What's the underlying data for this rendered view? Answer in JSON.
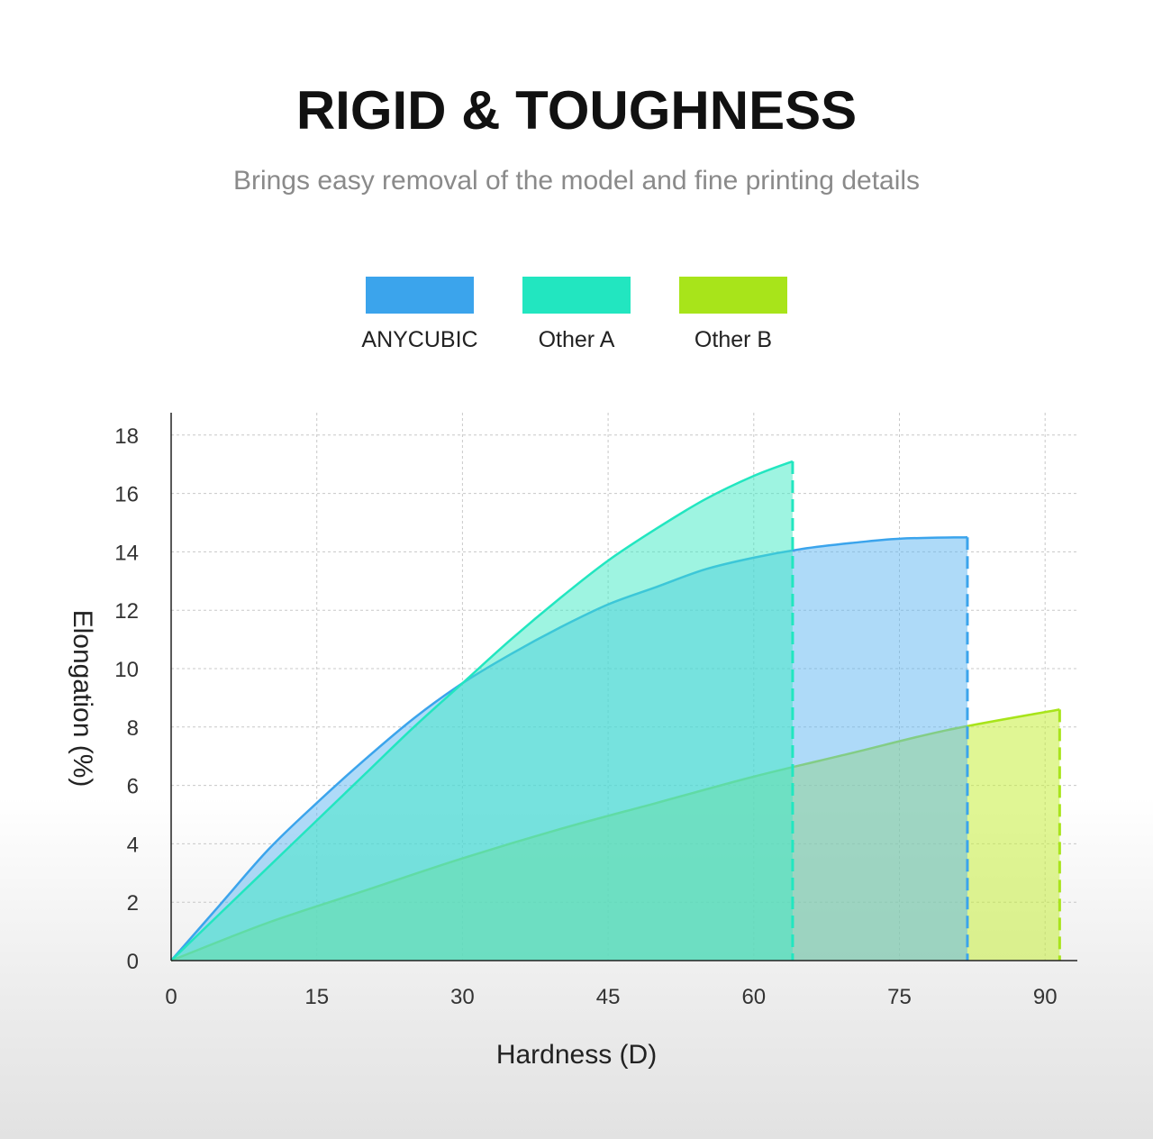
{
  "header": {
    "title": "RIGID & TOUGHNESS",
    "subtitle": "Brings easy removal of the model and fine printing details"
  },
  "chart_data": {
    "type": "area",
    "xlabel": "Hardness (D)",
    "ylabel": "Elongation (%)",
    "xlim": [
      0,
      93
    ],
    "ylim": [
      0,
      18
    ],
    "x_ticks": [
      0,
      15,
      30,
      45,
      60,
      75,
      90
    ],
    "y_ticks": [
      0,
      2,
      4,
      6,
      8,
      10,
      12,
      14,
      16,
      18
    ],
    "grid": true,
    "legend_position": "top-center",
    "series": [
      {
        "name": "ANYCUBIC",
        "color": "#3ba4ec",
        "fill": "#5db5f2",
        "x": [
          0,
          5,
          10,
          15,
          20,
          25,
          30,
          35,
          40,
          45,
          50,
          55,
          60,
          65,
          70,
          75,
          82
        ],
        "y": [
          0,
          1.9,
          3.8,
          5.4,
          6.9,
          8.3,
          9.5,
          10.5,
          11.4,
          12.2,
          12.8,
          13.4,
          13.8,
          14.1,
          14.3,
          14.45,
          14.5
        ]
      },
      {
        "name": "Other A",
        "color": "#22e6c0",
        "fill": "#3eeac4",
        "x": [
          0,
          5,
          10,
          15,
          20,
          25,
          30,
          35,
          40,
          45,
          50,
          55,
          60,
          64
        ],
        "y": [
          0,
          1.6,
          3.2,
          4.8,
          6.4,
          8.0,
          9.5,
          11.0,
          12.4,
          13.7,
          14.8,
          15.8,
          16.6,
          17.1
        ]
      },
      {
        "name": "Other B",
        "color": "#a8e41a",
        "fill": "#c6ef3c",
        "x": [
          0,
          10,
          20,
          30,
          40,
          50,
          60,
          70,
          80,
          91.5
        ],
        "y": [
          0,
          1.3,
          2.4,
          3.5,
          4.5,
          5.4,
          6.3,
          7.1,
          7.9,
          8.6
        ]
      }
    ]
  }
}
